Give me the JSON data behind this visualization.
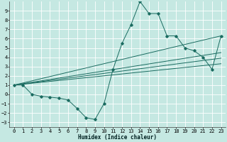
{
  "xlabel": "Humidex (Indice chaleur)",
  "bg_color": "#c5e8e2",
  "grid_color": "#ffffff",
  "line_color": "#1a6b60",
  "xlim": [
    -0.5,
    23.5
  ],
  "ylim": [
    -3.5,
    10.0
  ],
  "xticks": [
    0,
    1,
    2,
    3,
    4,
    5,
    6,
    7,
    8,
    9,
    10,
    11,
    12,
    13,
    14,
    15,
    16,
    17,
    18,
    19,
    20,
    21,
    22,
    23
  ],
  "yticks": [
    -3,
    -2,
    -1,
    0,
    1,
    2,
    3,
    4,
    5,
    6,
    7,
    8,
    9
  ],
  "main_x": [
    0,
    1,
    2,
    3,
    4,
    5,
    6,
    7,
    8,
    9,
    10,
    11,
    12,
    13,
    14,
    15,
    16,
    17,
    18,
    19,
    20,
    21,
    22,
    23
  ],
  "main_y": [
    1,
    1,
    0,
    -0.2,
    -0.3,
    -0.4,
    -0.6,
    -1.5,
    -2.5,
    -2.7,
    -1.0,
    2.7,
    5.5,
    7.5,
    10.0,
    8.7,
    8.7,
    6.3,
    6.3,
    5.0,
    4.7,
    4.0,
    2.7,
    6.3
  ],
  "trend_lines": [
    {
      "x": [
        0,
        23
      ],
      "y": [
        1.0,
        3.3
      ]
    },
    {
      "x": [
        0,
        23
      ],
      "y": [
        1.0,
        3.9
      ]
    },
    {
      "x": [
        0,
        23
      ],
      "y": [
        1.0,
        4.5
      ]
    },
    {
      "x": [
        0,
        23
      ],
      "y": [
        1.0,
        6.3
      ]
    }
  ],
  "xlabel_fontsize": 5.5,
  "tick_fontsize": 5.0,
  "linewidth": 0.7,
  "markersize": 1.8
}
